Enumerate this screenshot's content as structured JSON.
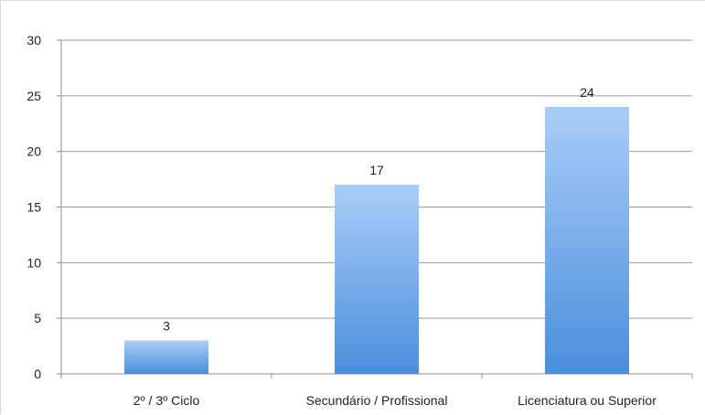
{
  "chart_data": {
    "type": "bar",
    "title": "",
    "xlabel": "",
    "ylabel": "",
    "categories": [
      "2º / 3º Ciclo",
      "Secundário / Profissional",
      "Licenciatura ou Superior"
    ],
    "values": [
      3,
      17,
      24
    ],
    "ylim": [
      0,
      30
    ],
    "yticks": [
      0,
      5,
      10,
      15,
      20,
      25,
      30
    ],
    "grid": true,
    "legend": "none",
    "data_labels": true,
    "colors": {
      "bar_top": "#a9cdf8",
      "bar_bottom": "#4a8fdc",
      "grid": "#9a9a9a",
      "axis": "#8c8c8c",
      "text": "#222222"
    }
  }
}
